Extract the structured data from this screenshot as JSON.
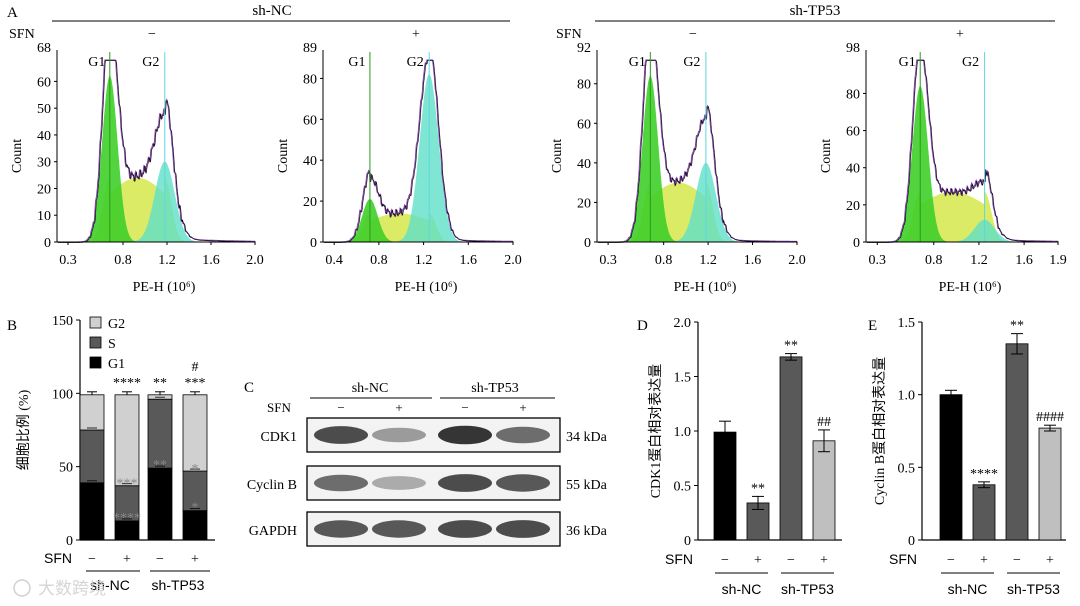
{
  "panels": {
    "A": "A",
    "B": "B",
    "C": "C",
    "D": "D",
    "E": "E"
  },
  "groups": {
    "nc": "sh-NC",
    "tp53": "sh-TP53"
  },
  "sfn": {
    "label": "SFN",
    "minus": "−",
    "plus": "+"
  },
  "flow": {
    "xlabel": "PE-H (10⁶)",
    "ylabel": "Count",
    "g1": "G1",
    "g2": "G2",
    "histograms": [
      {
        "group": "sh-NC",
        "sfn": "−",
        "ymax_label": "68",
        "yticks": [
          0,
          10,
          20,
          30,
          40,
          50,
          60
        ],
        "xticks": [
          "0.3",
          "0.8",
          "1.2",
          "1.6",
          "2.0"
        ],
        "xrange": [
          0.2,
          2.0
        ],
        "g1_peak": 0.68,
        "g1_height": 62,
        "g2_peak": 1.18,
        "g2_height": 30,
        "s_height": 24
      },
      {
        "group": "sh-NC",
        "sfn": "+",
        "ymax_label": "89",
        "yticks": [
          0,
          20,
          40,
          60,
          80
        ],
        "xticks": [
          "0.4",
          "0.8",
          "1.2",
          "1.6",
          "2.0"
        ],
        "xrange": [
          0.3,
          2.0
        ],
        "g1_peak": 0.72,
        "g1_height": 21,
        "g2_peak": 1.25,
        "g2_height": 82,
        "s_height": 14
      },
      {
        "group": "sh-TP53",
        "sfn": "−",
        "ymax_label": "92",
        "yticks": [
          0,
          20,
          40,
          60,
          80
        ],
        "xticks": [
          "0.3",
          "0.8",
          "1.2",
          "1.6",
          "2.0"
        ],
        "xrange": [
          0.2,
          2.0
        ],
        "g1_peak": 0.68,
        "g1_height": 84,
        "g2_peak": 1.18,
        "g2_height": 40,
        "s_height": 30
      },
      {
        "group": "sh-TP53",
        "sfn": "+",
        "ymax_label": "98",
        "yticks": [
          0,
          20,
          40,
          60,
          80
        ],
        "xticks": [
          "0.3",
          "0.8",
          "1.2",
          "1.6",
          "1.9"
        ],
        "xrange": [
          0.2,
          1.9
        ],
        "g1_peak": 0.68,
        "g1_height": 84,
        "g2_peak": 1.25,
        "g2_height": 12,
        "s_height": 27
      }
    ]
  },
  "chart_data": [
    {
      "type": "bar",
      "stacked": true,
      "ylabel": "细胞比例 (%)",
      "ylim": [
        0,
        150
      ],
      "yticks": [
        0,
        50,
        100,
        150
      ],
      "categories": [
        "sh-NC / SFN −",
        "sh-NC / SFN +",
        "sh-TP53 / SFN −",
        "sh-TP53 / SFN +"
      ],
      "series": [
        {
          "name": "G1",
          "color": "#000000",
          "values": [
            39,
            13,
            49,
            20
          ]
        },
        {
          "name": "S",
          "color": "#595959",
          "values": [
            36,
            24,
            47,
            27
          ]
        },
        {
          "name": "G2",
          "color": "#d0d0d0",
          "values": [
            24,
            62,
            3,
            52
          ]
        }
      ],
      "legend": [
        "G2",
        "S",
        "G1"
      ],
      "annotations": [
        {
          "bar": 1,
          "level": "top",
          "text": "****"
        },
        {
          "bar": 1,
          "level": "s",
          "text": "***"
        },
        {
          "bar": 1,
          "level": "g1",
          "text": "****"
        },
        {
          "bar": 2,
          "level": "top",
          "text": "**"
        },
        {
          "bar": 2,
          "level": "g1",
          "text": "**"
        },
        {
          "bar": 3,
          "level": "top",
          "text": "***"
        },
        {
          "bar": 3,
          "level": "top2",
          "text": "#"
        },
        {
          "bar": 3,
          "level": "s",
          "text": "*"
        },
        {
          "bar": 3,
          "level": "g1",
          "text": "*"
        }
      ],
      "errors": [
        2,
        2,
        2,
        2
      ]
    },
    {
      "type": "bar",
      "ylabel": "CDK1蛋白相对表达量",
      "ylim": [
        0,
        2.0
      ],
      "yticks": [
        "0",
        "0.5",
        "1.0",
        "1.5",
        "2.0"
      ],
      "categories": [
        "sh-NC / SFN −",
        "sh-NC / SFN +",
        "sh-TP53 / SFN −",
        "sh-TP53 / SFN +"
      ],
      "values": [
        0.99,
        0.34,
        1.68,
        0.91
      ],
      "errors": [
        0.1,
        0.06,
        0.03,
        0.1
      ],
      "colors": [
        "#000000",
        "#595959",
        "#595959",
        "#bfbfbf"
      ],
      "annotations": [
        "",
        "**",
        "**",
        "##"
      ]
    },
    {
      "type": "bar",
      "ylabel": "Cyclin B蛋白相对表达量",
      "ylim": [
        0,
        1.5
      ],
      "yticks": [
        "0",
        "0.5",
        "1.0",
        "1.5"
      ],
      "categories": [
        "sh-NC / SFN −",
        "sh-NC / SFN +",
        "sh-TP53 / SFN −",
        "sh-TP53 / SFN +"
      ],
      "values": [
        1.0,
        0.38,
        1.35,
        0.77
      ],
      "errors": [
        0.03,
        0.02,
        0.07,
        0.02
      ],
      "colors": [
        "#000000",
        "#595959",
        "#595959",
        "#bfbfbf"
      ],
      "annotations": [
        "",
        "****",
        "**",
        "####"
      ]
    }
  ],
  "western": {
    "labels": [
      "CDK1",
      "Cyclin B",
      "GAPDH"
    ],
    "sizes": [
      "34 kDa",
      "55 kDa",
      "36 kDa"
    ],
    "intensities": [
      [
        0.85,
        0.45,
        0.95,
        0.7
      ],
      [
        0.7,
        0.35,
        0.85,
        0.8
      ],
      [
        0.8,
        0.8,
        0.85,
        0.85
      ]
    ]
  },
  "watermark": "大数跨境"
}
